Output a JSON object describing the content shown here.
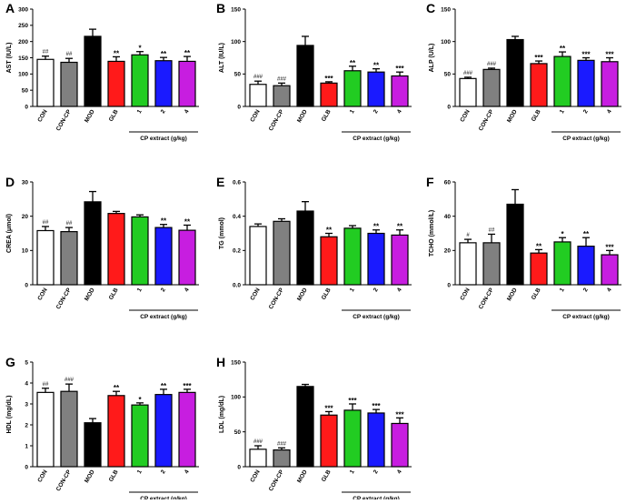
{
  "figure": {
    "group_label": "CP extract (g/kg)",
    "group_members": [
      "1",
      "2",
      "4"
    ]
  },
  "colors": {
    "CON": "#ffffff",
    "CON-CP": "#808080",
    "MOD": "#000000",
    "GLB": "#ff1a1a",
    "1": "#22cc22",
    "2": "#1a1aff",
    "4": "#c71ee0",
    "axis": "#000000"
  },
  "chart_data": [
    {
      "panel": "A",
      "type": "bar",
      "ylabel": "AST (IU/L)",
      "ylim": [
        0,
        300
      ],
      "ticks": [
        "0",
        "50",
        "100",
        "150",
        "200",
        "250",
        "300"
      ],
      "tick_values": [
        0,
        50,
        100,
        150,
        200,
        250,
        300
      ],
      "categories": [
        "CON",
        "CON-CP",
        "MOD",
        "GLB",
        "1",
        "2",
        "4"
      ],
      "values": [
        145,
        136,
        216,
        139,
        159,
        141,
        139
      ],
      "errors": [
        10,
        12,
        22,
        14,
        10,
        10,
        15
      ],
      "annotations": [
        "##",
        "##",
        "",
        "**",
        "*",
        "**",
        "**"
      ]
    },
    {
      "panel": "B",
      "type": "bar",
      "ylabel": "ALT (IU/L)",
      "ylim": [
        0,
        150
      ],
      "ticks": [
        "0",
        "50",
        "100",
        "150"
      ],
      "tick_values": [
        0,
        50,
        100,
        150
      ],
      "categories": [
        "CON",
        "CON-CP",
        "MOD",
        "GLB",
        "1",
        "2",
        "4"
      ],
      "values": [
        34,
        32,
        94,
        36,
        55,
        53,
        47
      ],
      "errors": [
        5,
        4,
        14,
        2,
        7,
        5,
        6
      ],
      "annotations": [
        "###",
        "###",
        "",
        "***",
        "**",
        "**",
        "***"
      ]
    },
    {
      "panel": "C",
      "type": "bar",
      "ylabel": "ALP (U/L)",
      "ylim": [
        0,
        150
      ],
      "ticks": [
        "0",
        "50",
        "100",
        "150"
      ],
      "tick_values": [
        0,
        50,
        100,
        150
      ],
      "categories": [
        "CON",
        "CON-CP",
        "MOD",
        "GLB",
        "1",
        "2",
        "4"
      ],
      "values": [
        43,
        57,
        103,
        66,
        77,
        71,
        69
      ],
      "errors": [
        2,
        2,
        5,
        4,
        7,
        4,
        6
      ],
      "annotations": [
        "###",
        "###",
        "",
        "***",
        "**",
        "***",
        "***"
      ]
    },
    {
      "panel": "D",
      "type": "bar",
      "ylabel": "CREA (μmol)",
      "ylim": [
        0,
        30
      ],
      "ticks": [
        "0",
        "10",
        "20",
        "30"
      ],
      "tick_values": [
        0,
        10,
        20,
        30
      ],
      "categories": [
        "CON",
        "CON-CP",
        "MOD",
        "GLB",
        "1",
        "2",
        "4"
      ],
      "values": [
        15.8,
        15.5,
        24.2,
        20.8,
        19.8,
        16.7,
        15.9
      ],
      "errors": [
        1.2,
        1.2,
        3.0,
        0.6,
        0.6,
        0.9,
        1.5
      ],
      "annotations": [
        "##",
        "##",
        "",
        "",
        "",
        "**",
        "**"
      ]
    },
    {
      "panel": "E",
      "type": "bar",
      "ylabel": "TG (mmol)",
      "ylim": [
        0,
        0.6
      ],
      "ticks": [
        "0.0",
        "0.2",
        "0.4",
        "0.6"
      ],
      "tick_values": [
        0,
        0.2,
        0.4,
        0.6
      ],
      "categories": [
        "CON",
        "CON-CP",
        "MOD",
        "GLB",
        "1",
        "2",
        "4"
      ],
      "values": [
        0.34,
        0.37,
        0.43,
        0.28,
        0.33,
        0.3,
        0.29
      ],
      "errors": [
        0.015,
        0.015,
        0.055,
        0.02,
        0.015,
        0.02,
        0.03
      ],
      "annotations": [
        "",
        "",
        "",
        "**",
        "",
        "**",
        "**"
      ]
    },
    {
      "panel": "F",
      "type": "bar",
      "ylabel": "TCHO (mmol/L)",
      "ylim": [
        0,
        60
      ],
      "ticks": [
        "0",
        "20",
        "40",
        "60"
      ],
      "tick_values": [
        0,
        20,
        40,
        60
      ],
      "categories": [
        "CON",
        "CON-CP",
        "MOD",
        "GLB",
        "1",
        "2",
        "4"
      ],
      "values": [
        24.5,
        24.5,
        47,
        18.5,
        25,
        22.5,
        17.5
      ],
      "errors": [
        2,
        5,
        8.5,
        2,
        2.5,
        5,
        2.5
      ],
      "annotations": [
        "#",
        "##",
        "",
        "**",
        "*",
        "**",
        "***"
      ]
    },
    {
      "panel": "G",
      "type": "bar",
      "ylabel": "HDL (mg/dL)",
      "ylim": [
        0,
        5
      ],
      "ticks": [
        "0",
        "1",
        "2",
        "3",
        "4",
        "5"
      ],
      "tick_values": [
        0,
        1,
        2,
        3,
        4,
        5
      ],
      "categories": [
        "CON",
        "CON-CP",
        "MOD",
        "GLB",
        "1",
        "2",
        "4"
      ],
      "values": [
        3.55,
        3.6,
        2.1,
        3.4,
        2.95,
        3.45,
        3.55
      ],
      "errors": [
        0.2,
        0.35,
        0.2,
        0.2,
        0.1,
        0.25,
        0.15
      ],
      "annotations": [
        "##",
        "###",
        "",
        "**",
        "*",
        "**",
        "***"
      ]
    },
    {
      "panel": "H",
      "type": "bar",
      "ylabel": "LDL (mg/dL)",
      "ylim": [
        0,
        150
      ],
      "ticks": [
        "0",
        "50",
        "100",
        "150"
      ],
      "tick_values": [
        0,
        50,
        100,
        150
      ],
      "categories": [
        "CON",
        "CON-CP",
        "MOD",
        "GLB",
        "1",
        "2",
        "4"
      ],
      "values": [
        25,
        24,
        115,
        74,
        81,
        77,
        62
      ],
      "errors": [
        5,
        3,
        3,
        5,
        9,
        5,
        8
      ],
      "annotations": [
        "###",
        "###",
        "",
        "***",
        "***",
        "***",
        "***"
      ]
    }
  ]
}
